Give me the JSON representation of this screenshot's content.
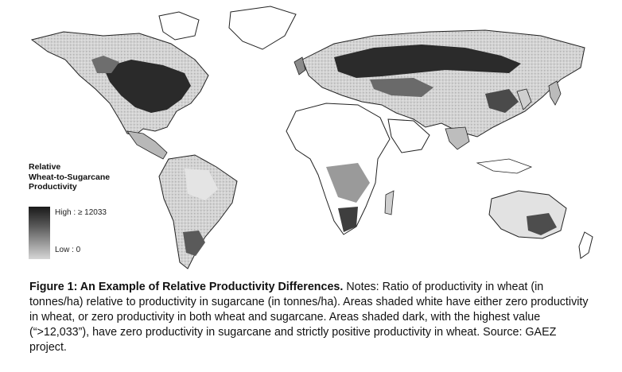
{
  "legend": {
    "title_line1": "Relative",
    "title_line2": "Wheat-to-Sugarcane",
    "title_line3": "Productivity",
    "high_label": "High : ≥ 12033",
    "low_label": "Low : 0"
  },
  "caption": {
    "lead": "Figure 1: An Example of Relative Productivity Differences.",
    "body": " Notes: Ratio of productivity in wheat (in tonnes/ha) relative to productivity in sugarcane (in tonnes/ha). Areas shaded white have either zero productivity in wheat, or zero productivity in both wheat and sugarcane. Areas shaded dark, with the highest value (“>12,033”), have zero productivity in sugarcane and strictly positive productivity in wheat. Source: GAEZ project."
  },
  "colors": {
    "land_outline": "#222222",
    "dark_shade": "#1a1a1a",
    "mid_shade": "#7a7a7a",
    "light_shade": "#cfcfcf",
    "background": "#ffffff"
  }
}
